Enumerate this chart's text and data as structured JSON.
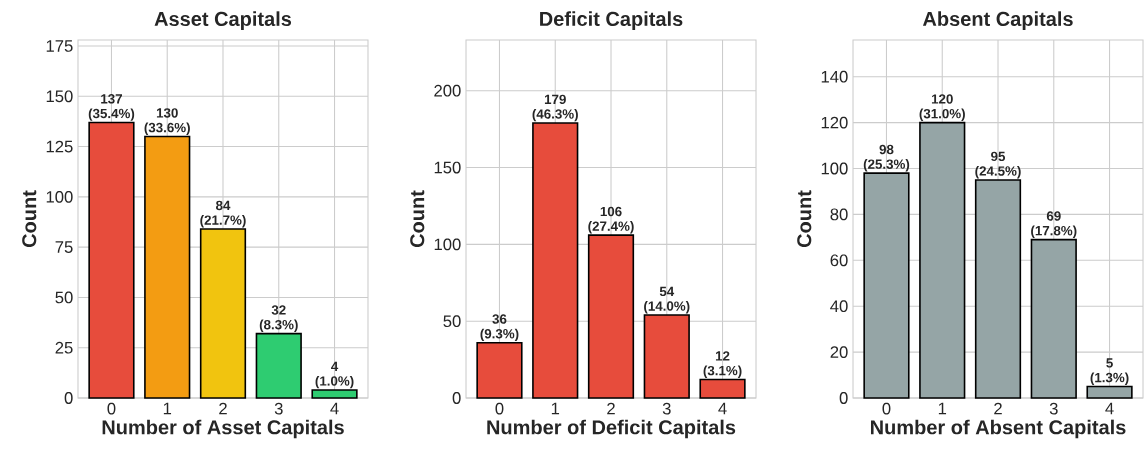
{
  "chart_data": [
    {
      "type": "bar",
      "title": "Asset Capitals",
      "xlabel": "Number of Asset Capitals",
      "ylabel": "Count",
      "categories": [
        "0",
        "1",
        "2",
        "3",
        "4"
      ],
      "values": [
        137,
        130,
        84,
        32,
        4
      ],
      "colors": [
        "#e74c3c",
        "#f39c12",
        "#f1c40f",
        "#2ecc71",
        "#2ecc71"
      ],
      "value_labels": [
        "137 (35.4%)",
        "130 (33.6%)",
        "84 (21.7%)",
        "32 (8.3%)",
        "4 (1.0%)"
      ],
      "ylim": [
        0,
        178
      ],
      "yticks": [
        0,
        25,
        50,
        75,
        100,
        125,
        150,
        175
      ],
      "grid": true
    },
    {
      "type": "bar",
      "title": "Deficit Capitals",
      "xlabel": "Number of Deficit Capitals",
      "ylabel": "Count",
      "categories": [
        "0",
        "1",
        "2",
        "3",
        "4"
      ],
      "values": [
        36,
        179,
        106,
        54,
        12
      ],
      "colors": [
        "#e74c3c",
        "#e74c3c",
        "#e74c3c",
        "#e74c3c",
        "#e74c3c"
      ],
      "value_labels": [
        "36 (9.3%)",
        "179 (46.3%)",
        "106 (27.4%)",
        "54 (14.0%)",
        "12 (3.1%)"
      ],
      "ylim": [
        0,
        233
      ],
      "yticks": [
        0,
        50,
        100,
        150,
        200
      ],
      "grid": true
    },
    {
      "type": "bar",
      "title": "Absent Capitals",
      "xlabel": "Number of Absent Capitals",
      "ylabel": "Count",
      "categories": [
        "0",
        "1",
        "2",
        "3",
        "4"
      ],
      "values": [
        98,
        120,
        95,
        69,
        5
      ],
      "colors": [
        "#95a5a6",
        "#95a5a6",
        "#95a5a6",
        "#95a5a6",
        "#95a5a6"
      ],
      "value_labels": [
        "98 (25.3%)",
        "120 (31.0%)",
        "95 (24.5%)",
        "69 (17.8%)",
        "5 (1.3%)"
      ],
      "ylim": [
        0,
        156
      ],
      "yticks": [
        0,
        20,
        40,
        60,
        80,
        100,
        120,
        140
      ],
      "grid": true
    }
  ]
}
